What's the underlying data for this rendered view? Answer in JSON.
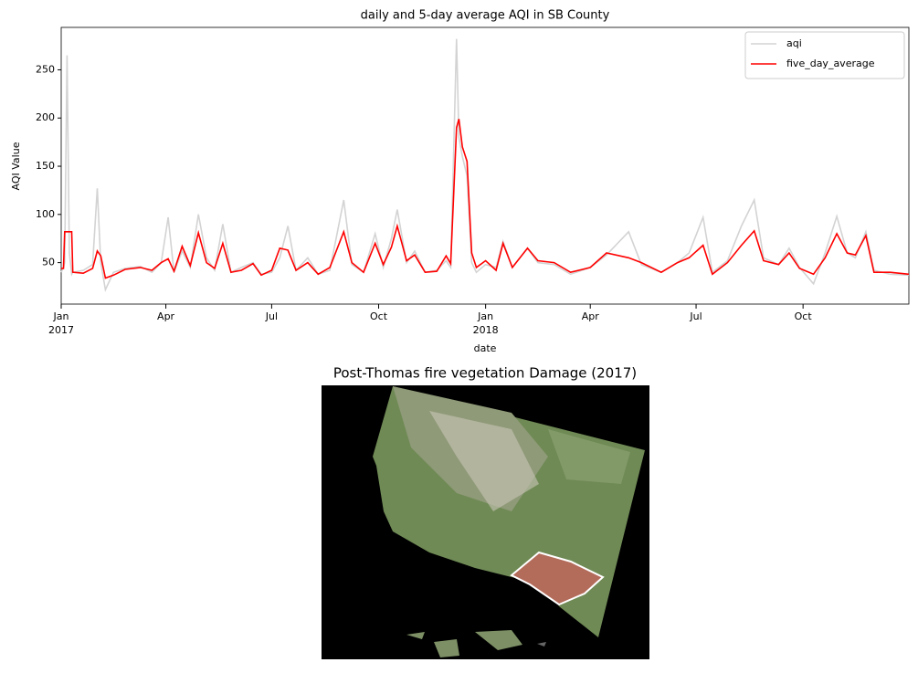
{
  "chart_data": [
    {
      "type": "line",
      "title": "daily and 5-day average AQI in SB County",
      "xlabel": "date",
      "ylabel": "AQI Value",
      "x": [
        "2017-01-01",
        "2017-01-03",
        "2017-01-04",
        "2017-01-06",
        "2017-01-08",
        "2017-01-10",
        "2017-01-11",
        "2017-01-20",
        "2017-01-28",
        "2017-02-01",
        "2017-02-04",
        "2017-02-08",
        "2017-02-15",
        "2017-02-25",
        "2017-03-10",
        "2017-03-20",
        "2017-03-28",
        "2017-04-03",
        "2017-04-08",
        "2017-04-15",
        "2017-04-22",
        "2017-04-29",
        "2017-05-06",
        "2017-05-13",
        "2017-05-20",
        "2017-05-27",
        "2017-06-05",
        "2017-06-15",
        "2017-06-22",
        "2017-07-01",
        "2017-07-08",
        "2017-07-15",
        "2017-07-22",
        "2017-08-01",
        "2017-08-10",
        "2017-08-20",
        "2017-09-01",
        "2017-09-08",
        "2017-09-18",
        "2017-09-28",
        "2017-10-05",
        "2017-10-12",
        "2017-10-17",
        "2017-10-25",
        "2017-11-01",
        "2017-11-10",
        "2017-11-20",
        "2017-11-28",
        "2017-12-02",
        "2017-12-07",
        "2017-12-09",
        "2017-12-12",
        "2017-12-16",
        "2017-12-20",
        "2017-12-24",
        "2018-01-01",
        "2018-01-10",
        "2018-01-16",
        "2018-01-24",
        "2018-02-06",
        "2018-02-15",
        "2018-03-01",
        "2018-03-15",
        "2018-04-01",
        "2018-04-15",
        "2018-05-04",
        "2018-05-15",
        "2018-06-01",
        "2018-06-15",
        "2018-06-25",
        "2018-07-07",
        "2018-07-15",
        "2018-07-28",
        "2018-08-09",
        "2018-08-20",
        "2018-08-28",
        "2018-09-10",
        "2018-09-19",
        "2018-09-28",
        "2018-10-10",
        "2018-10-20",
        "2018-10-30",
        "2018-11-08",
        "2018-11-15",
        "2018-11-24",
        "2018-12-01",
        "2018-12-15",
        "2018-12-31"
      ],
      "series": [
        {
          "name": "aqi",
          "color": "#d3d3d3",
          "values": [
            40,
            45,
            50,
            265,
            60,
            38,
            40,
            42,
            48,
            127,
            50,
            22,
            40,
            44,
            46,
            40,
            50,
            97,
            40,
            62,
            45,
            100,
            55,
            42,
            90,
            40,
            45,
            50,
            38,
            40,
            55,
            88,
            42,
            55,
            38,
            42,
            115,
            48,
            40,
            80,
            45,
            75,
            105,
            50,
            62,
            40,
            42,
            52,
            45,
            282,
            180,
            160,
            140,
            50,
            40,
            48,
            45,
            72,
            45,
            65,
            50,
            48,
            38,
            45,
            58,
            82,
            48,
            40,
            50,
            60,
            97,
            40,
            52,
            88,
            115,
            55,
            48,
            65,
            45,
            28,
            60,
            98,
            60,
            55,
            82,
            42,
            38,
            37
          ]
        },
        {
          "name": "five_day_average",
          "color": "#ff0000",
          "values": [
            44,
            44,
            82,
            82,
            82,
            82,
            40,
            39,
            44,
            62,
            57,
            34,
            37,
            43,
            45,
            42,
            50,
            54,
            41,
            67,
            47,
            81,
            50,
            44,
            70,
            40,
            42,
            49,
            37,
            42,
            65,
            63,
            42,
            50,
            38,
            45,
            82,
            50,
            40,
            70,
            48,
            66,
            88,
            52,
            58,
            40,
            41,
            57,
            49,
            190,
            199,
            170,
            155,
            60,
            45,
            52,
            42,
            70,
            45,
            65,
            52,
            50,
            40,
            45,
            60,
            55,
            50,
            40,
            50,
            55,
            68,
            38,
            50,
            68,
            83,
            52,
            48,
            60,
            44,
            38,
            55,
            80,
            60,
            58,
            78,
            40,
            40,
            38
          ]
        }
      ],
      "xlim": [
        "2017-01-01",
        "2018-12-31"
      ],
      "xticks": [
        {
          "value": "2017-01-01",
          "label": "Jan\n2017"
        },
        {
          "value": "2017-04-01",
          "label": "Apr"
        },
        {
          "value": "2017-07-01",
          "label": "Jul"
        },
        {
          "value": "2017-10-01",
          "label": "Oct"
        },
        {
          "value": "2018-01-01",
          "label": "Jan\n2018"
        },
        {
          "value": "2018-04-01",
          "label": "Apr"
        },
        {
          "value": "2018-07-01",
          "label": "Jul"
        },
        {
          "value": "2018-10-01",
          "label": "Oct"
        }
      ],
      "ylim": [
        7,
        294
      ],
      "yticks": [
        50,
        100,
        150,
        200,
        250
      ],
      "legend": "upper right"
    },
    {
      "type": "image",
      "title": "Post-Thomas fire vegetation Damage (2017)"
    }
  ]
}
